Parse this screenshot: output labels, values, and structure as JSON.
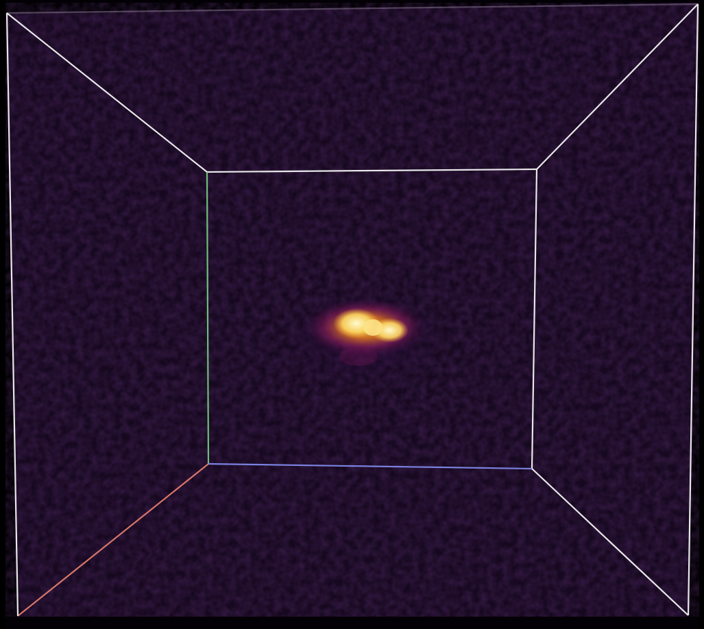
{
  "viewer": {
    "colormap": "inferno",
    "background_color": "#030105",
    "volume_tint": "#16081f",
    "axes": {
      "x_color": "#d97768",
      "y_color": "#6fbf7a",
      "z_color": "#7b82e0"
    },
    "bounding_box_color": "#e8e8e8"
  }
}
